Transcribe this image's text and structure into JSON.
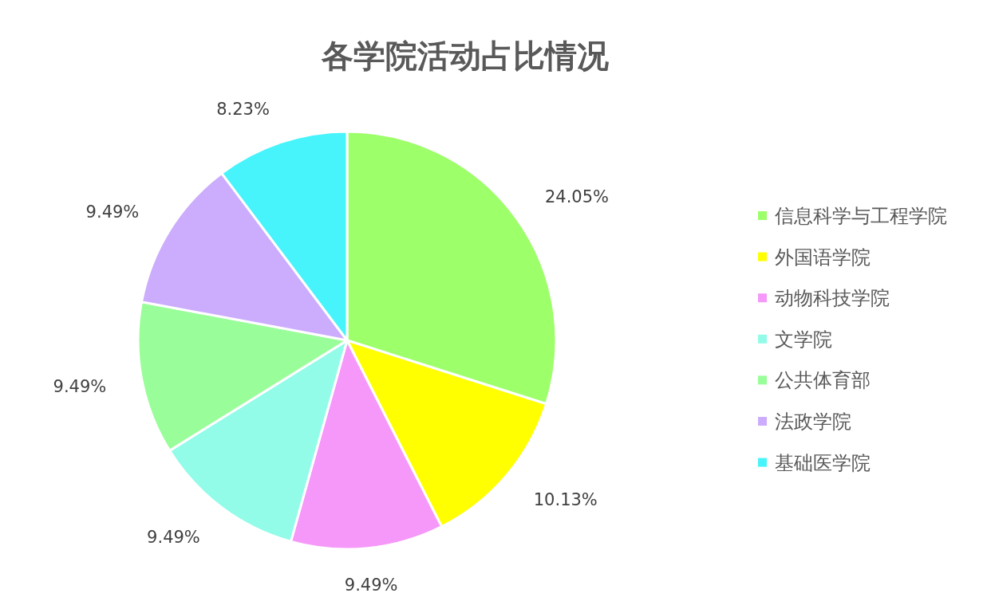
{
  "chart_data": {
    "type": "pie",
    "title": "各学院活动占比情况",
    "categories": [
      "信息科学与工程学院",
      "外国语学院",
      "动物科技学院",
      "文学院",
      "公共体育部",
      "法政学院",
      "基础医学院"
    ],
    "values": [
      24.05,
      10.13,
      9.49,
      9.49,
      9.49,
      9.49,
      8.23
    ],
    "value_labels": [
      "24.05%",
      "10.13%",
      "9.49%",
      "9.49%",
      "9.49%",
      "9.49%",
      "8.23%"
    ],
    "colors": [
      "#9dff6a",
      "#ffff00",
      "#f598f9",
      "#92fce8",
      "#99fe99",
      "#cbacfd",
      "#48f4fb"
    ],
    "legend": "right"
  }
}
